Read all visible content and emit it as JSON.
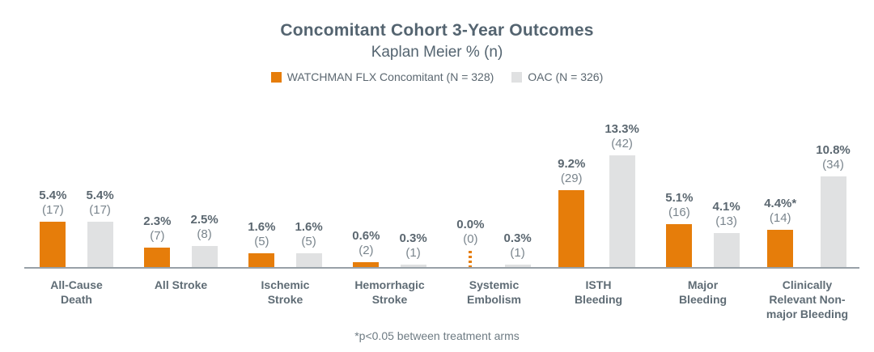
{
  "header": {
    "title": "Concomitant Cohort 3-Year Outcomes",
    "subtitle": "Kaplan Meier % (n)"
  },
  "legend": {
    "items": [
      {
        "label": "WATCHMAN FLX Concomitant (N = 328)",
        "color": "#e67d0a"
      },
      {
        "label": "OAC (N = 326)",
        "color": "#e0e1e2"
      }
    ]
  },
  "footnote": "*p<0.05 between treatment arms",
  "colors": {
    "flx_orange": "#e67d0a",
    "oac_gray": "#e0e1e2",
    "baseline_gray": "#98a1a8",
    "text_slate": "#5b6770"
  },
  "chart_data": {
    "type": "bar",
    "title": "Concomitant Cohort 3-Year Outcomes",
    "subtitle": "Kaplan Meier % (n)",
    "categories": [
      "All-Cause Death",
      "All Stroke",
      "Ischemic Stroke",
      "Hemorrhagic Stroke",
      "Systemic Embolism",
      "ISTH Bleeding",
      "Major Bleeding",
      "Clinically Relevant Non-major Bleeding"
    ],
    "category_lines": [
      [
        "All-Cause",
        "Death"
      ],
      [
        "All Stroke"
      ],
      [
        "Ischemic",
        "Stroke"
      ],
      [
        "Hemorrhagic",
        "Stroke"
      ],
      [
        "Systemic",
        "Embolism"
      ],
      [
        "ISTH",
        "Bleeding"
      ],
      [
        "Major",
        "Bleeding"
      ],
      [
        "Clinically",
        "Relevant Non-",
        "major Bleeding"
      ]
    ],
    "series": [
      {
        "name": "WATCHMAN FLX Concomitant (N = 328)",
        "color": "#e67d0a",
        "values": [
          5.4,
          2.3,
          1.6,
          0.6,
          0.0,
          9.2,
          5.1,
          4.4
        ],
        "counts": [
          17,
          7,
          5,
          2,
          0,
          29,
          16,
          14
        ],
        "value_labels": [
          "5.4%",
          "2.3%",
          "1.6%",
          "0.6%",
          "0.0%",
          "9.2%",
          "5.1%",
          "4.4%*"
        ]
      },
      {
        "name": "OAC (N = 326)",
        "color": "#e0e1e2",
        "values": [
          5.4,
          2.5,
          1.6,
          0.3,
          0.3,
          13.3,
          4.1,
          10.8
        ],
        "counts": [
          17,
          8,
          5,
          1,
          1,
          42,
          13,
          34
        ],
        "value_labels": [
          "5.4%",
          "2.5%",
          "1.6%",
          "0.3%",
          "0.3%",
          "13.3%",
          "4.1%",
          "10.8%"
        ]
      }
    ],
    "ylim": [
      0,
      14.5
    ],
    "grid": false,
    "legend_position": "top",
    "annotations": [
      "*p<0.05 between treatment arms"
    ]
  }
}
